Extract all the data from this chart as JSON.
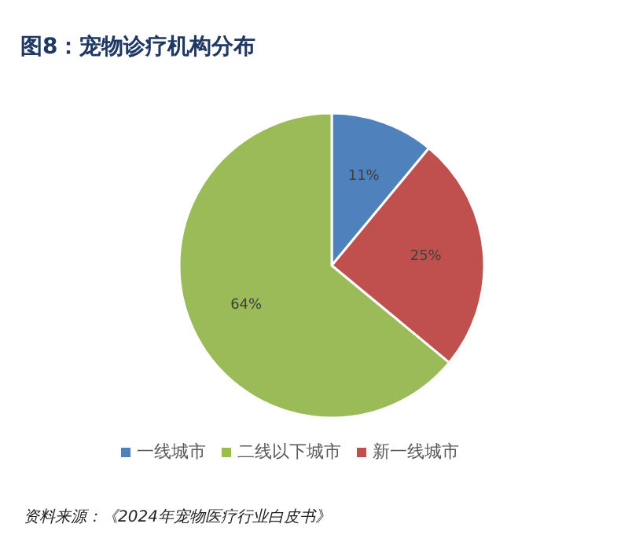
{
  "chart_data": {
    "type": "pie",
    "title": "图8：宠物诊疗机构分布",
    "categories": [
      "一线城市",
      "新一线城市",
      "二线以下城市"
    ],
    "values": [
      11,
      25,
      64
    ],
    "colors": [
      "#4f81bd",
      "#c0504d",
      "#9bbb59"
    ],
    "value_labels": [
      "11%",
      "25%",
      "64%"
    ],
    "legend": "bottom",
    "annotations": [
      "资料来源：《2024年宠物医疗行业白皮书》"
    ]
  }
}
